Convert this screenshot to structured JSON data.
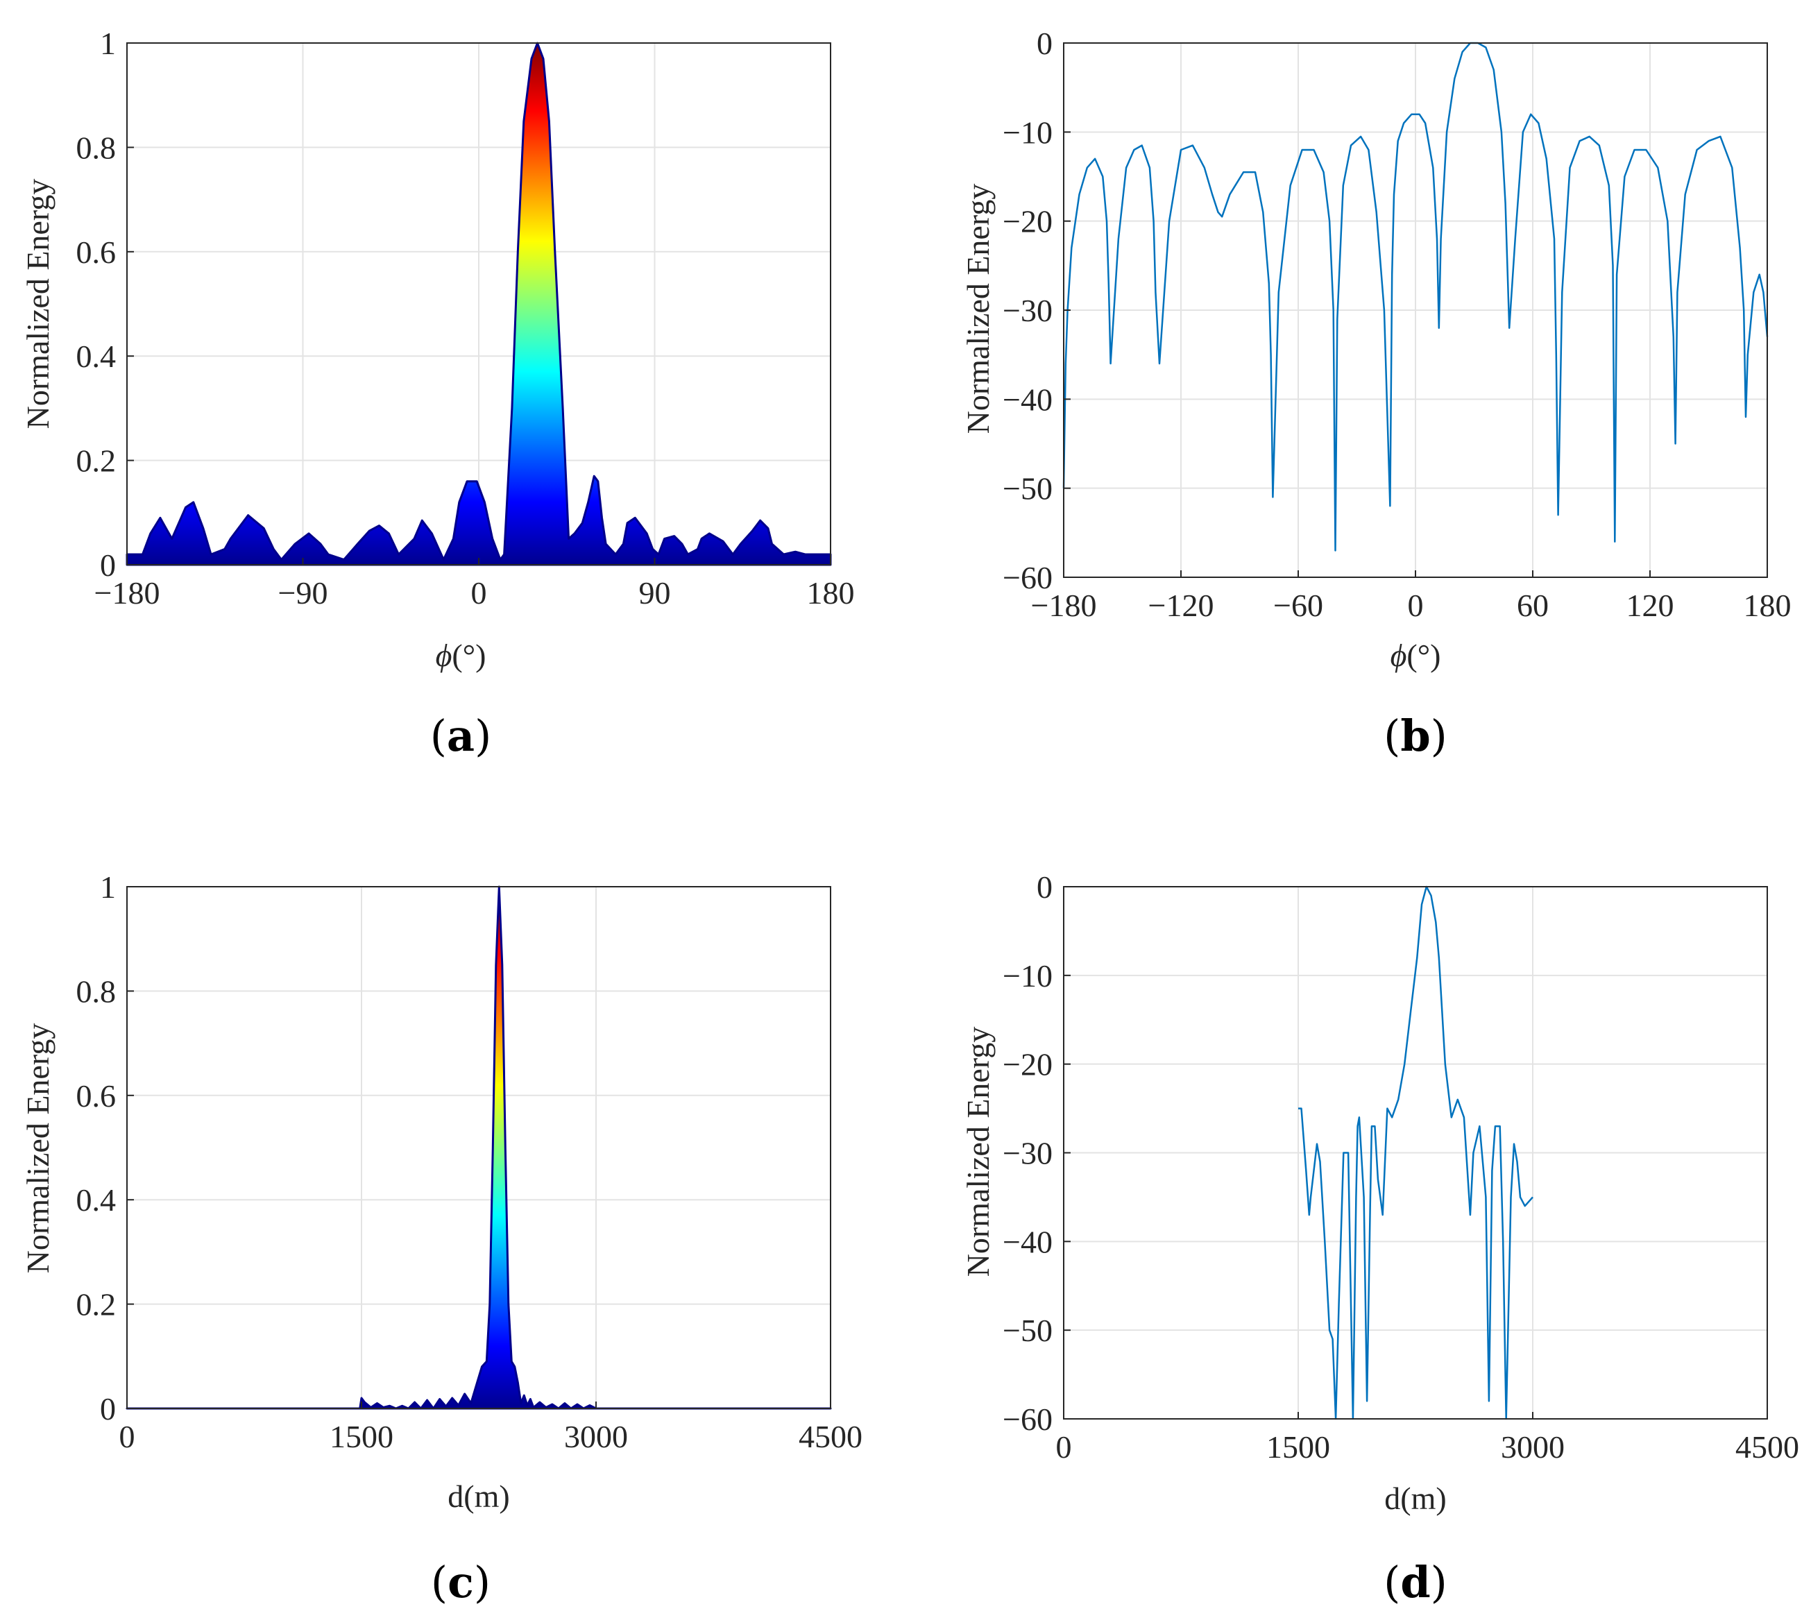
{
  "chart_data": [
    {
      "id": "a",
      "type": "area",
      "caption": "a",
      "xlabel": "ϕ(°)",
      "ylabel": "Normalized Energy",
      "xlim": [
        -180,
        180
      ],
      "ylim": [
        0,
        1
      ],
      "xticks": [
        -180,
        -90,
        0,
        90,
        180
      ],
      "xtick_labels": [
        "−180",
        "−90",
        "0",
        "90",
        "180"
      ],
      "yticks": [
        0,
        0.2,
        0.4,
        0.6,
        0.8,
        1
      ],
      "ytick_labels": [
        "0",
        "0.2",
        "0.4",
        "0.6",
        "0.8",
        "1"
      ],
      "grid": true,
      "colormap": "jet",
      "x": [
        -180,
        -172,
        -168,
        -163,
        -160,
        -157,
        -150,
        -146,
        -141,
        -137,
        -130,
        -127,
        -118,
        -110,
        -105,
        -101,
        -94,
        -87,
        -81,
        -77,
        -69,
        -62,
        -56,
        -51,
        -46,
        -41,
        -33,
        -29,
        -24,
        -18,
        -13,
        -10,
        -6,
        -1,
        3,
        7,
        11,
        13,
        17,
        20,
        23,
        27,
        30,
        33,
        36,
        39,
        43,
        46,
        49,
        53,
        56,
        59,
        61,
        63,
        65,
        70,
        74,
        76,
        80,
        86,
        89,
        92,
        95,
        100,
        104,
        107,
        112,
        114,
        118,
        125,
        130,
        134,
        140,
        144,
        148,
        150,
        156,
        162,
        167,
        172,
        176,
        180
      ],
      "y": [
        0.02,
        0.02,
        0.06,
        0.09,
        0.07,
        0.05,
        0.11,
        0.12,
        0.07,
        0.02,
        0.03,
        0.05,
        0.095,
        0.07,
        0.03,
        0.01,
        0.04,
        0.06,
        0.04,
        0.02,
        0.01,
        0.04,
        0.065,
        0.075,
        0.06,
        0.02,
        0.05,
        0.085,
        0.06,
        0.01,
        0.05,
        0.12,
        0.16,
        0.16,
        0.12,
        0.05,
        0.01,
        0.02,
        0.3,
        0.6,
        0.85,
        0.97,
        1.0,
        0.97,
        0.85,
        0.6,
        0.3,
        0.05,
        0.06,
        0.08,
        0.12,
        0.17,
        0.16,
        0.09,
        0.04,
        0.02,
        0.04,
        0.08,
        0.09,
        0.06,
        0.03,
        0.02,
        0.05,
        0.055,
        0.04,
        0.02,
        0.03,
        0.05,
        0.06,
        0.045,
        0.02,
        0.04,
        0.065,
        0.085,
        0.07,
        0.04,
        0.02,
        0.025,
        0.02,
        0.02,
        0.02,
        0.02
      ]
    },
    {
      "id": "b",
      "type": "line",
      "caption": "b",
      "xlabel": "ϕ(°)",
      "ylabel": "Normalized Energy",
      "xlim": [
        -180,
        180
      ],
      "ylim": [
        -60,
        0
      ],
      "xticks": [
        -180,
        -120,
        -60,
        0,
        60,
        120,
        180
      ],
      "xtick_labels": [
        "−180",
        "−120",
        "−60",
        "0",
        "60",
        "120",
        "180"
      ],
      "yticks": [
        -60,
        -50,
        -40,
        -30,
        -20,
        -10,
        0
      ],
      "ytick_labels": [
        "−60",
        "−50",
        "−40",
        "−30",
        "−20",
        "−10",
        "0"
      ],
      "grid": true,
      "color": "#0072BD",
      "x": [
        -180,
        -179,
        -178,
        -176,
        -172,
        -168,
        -164,
        -160,
        -158,
        -157,
        -156,
        -152,
        -148,
        -144,
        -140,
        -136,
        -134,
        -133,
        -131,
        -126,
        -120,
        -114,
        -108,
        -104,
        -101,
        -99,
        -95,
        -88,
        -82,
        -78,
        -75,
        -74,
        -73,
        -70,
        -64,
        -58,
        -52,
        -47,
        -44,
        -42,
        -41,
        -40,
        -37,
        -33,
        -28,
        -24,
        -20,
        -16,
        -13,
        -12,
        -11,
        -9,
        -6,
        -2,
        2,
        5,
        9,
        11,
        12,
        13,
        16,
        20,
        24,
        28,
        32,
        36,
        40,
        44,
        46,
        47,
        48,
        51,
        55,
        59,
        63,
        67,
        71,
        72,
        73,
        75,
        79,
        84,
        89,
        94,
        99,
        101,
        102,
        103,
        107,
        112,
        118,
        124,
        129,
        132,
        133,
        134,
        138,
        144,
        150,
        156,
        162,
        166,
        168,
        169,
        170,
        173,
        176,
        178,
        180
      ],
      "y": [
        -50,
        -36,
        -30,
        -23,
        -17,
        -14,
        -13,
        -15,
        -20,
        -27,
        -36,
        -22,
        -14,
        -12,
        -11.5,
        -14,
        -20,
        -28,
        -36,
        -20,
        -12,
        -11.5,
        -14,
        -17,
        -19,
        -19.5,
        -17,
        -14.5,
        -14.5,
        -19,
        -27,
        -35,
        -51,
        -28,
        -16,
        -12,
        -12,
        -14.5,
        -20,
        -30,
        -57,
        -31,
        -16,
        -11.5,
        -10.5,
        -12,
        -19,
        -30,
        -52,
        -26,
        -17,
        -11,
        -9,
        -8,
        -8,
        -9,
        -14,
        -22,
        -32,
        -22,
        -10,
        -4,
        -1,
        0,
        0,
        -0.5,
        -3,
        -10,
        -18,
        -25,
        -32,
        -22,
        -10,
        -8,
        -9,
        -13,
        -22,
        -35,
        -53,
        -28,
        -14,
        -11,
        -10.5,
        -11.5,
        -16,
        -25,
        -56,
        -26,
        -15,
        -12,
        -12,
        -14,
        -20,
        -33,
        -45,
        -28,
        -17,
        -12,
        -11,
        -10.5,
        -14,
        -23,
        -30,
        -42,
        -35,
        -28,
        -26,
        -28,
        -33
      ]
    },
    {
      "id": "c",
      "type": "area",
      "caption": "c",
      "xlabel": "d(m)",
      "ylabel": "Normalized Energy",
      "xlim": [
        0,
        4500
      ],
      "ylim": [
        0,
        1
      ],
      "xticks": [
        0,
        1500,
        3000,
        4500
      ],
      "xtick_labels": [
        "0",
        "1500",
        "3000",
        "4500"
      ],
      "yticks": [
        0,
        0.2,
        0.4,
        0.6,
        0.8,
        1
      ],
      "ytick_labels": [
        "0",
        "0.2",
        "0.4",
        "0.6",
        "0.8",
        "1"
      ],
      "grid": true,
      "colormap": "jet",
      "x": [
        0,
        1490,
        1500,
        1520,
        1560,
        1600,
        1640,
        1680,
        1720,
        1760,
        1800,
        1840,
        1880,
        1920,
        1960,
        2000,
        2040,
        2080,
        2120,
        2160,
        2200,
        2240,
        2270,
        2300,
        2320,
        2340,
        2360,
        2380,
        2400,
        2420,
        2440,
        2460,
        2480,
        2500,
        2520,
        2540,
        2560,
        2580,
        2600,
        2640,
        2680,
        2720,
        2760,
        2800,
        2840,
        2880,
        2920,
        2960,
        3000,
        3010,
        4500
      ],
      "y": [
        0,
        0,
        0.02,
        0.012,
        0.002,
        0.01,
        0.002,
        0.005,
        0,
        0.005,
        0,
        0.012,
        0,
        0.016,
        0,
        0.018,
        0.004,
        0.02,
        0.006,
        0.028,
        0.01,
        0.05,
        0.08,
        0.09,
        0.2,
        0.5,
        0.85,
        1.0,
        0.85,
        0.5,
        0.2,
        0.09,
        0.08,
        0.05,
        0.01,
        0.025,
        0.006,
        0.018,
        0.002,
        0.012,
        0.002,
        0.008,
        0,
        0.01,
        0,
        0.008,
        0,
        0.006,
        0,
        0,
        0
      ]
    },
    {
      "id": "d",
      "type": "line",
      "caption": "d",
      "xlabel": "d(m)",
      "ylabel": "Normalized Energy",
      "xlim": [
        0,
        4500
      ],
      "ylim": [
        -60,
        0
      ],
      "xticks": [
        0,
        1500,
        3000,
        4500
      ],
      "xtick_labels": [
        "0",
        "1500",
        "3000",
        "4500"
      ],
      "yticks": [
        -60,
        -50,
        -40,
        -30,
        -20,
        -10,
        0
      ],
      "ytick_labels": [
        "−60",
        "−50",
        "−40",
        "−30",
        "−20",
        "−10",
        "0"
      ],
      "grid": true,
      "color": "#0072BD",
      "x": [
        1500,
        1520,
        1550,
        1570,
        1580,
        1620,
        1640,
        1670,
        1700,
        1720,
        1740,
        1760,
        1790,
        1820,
        1830,
        1850,
        1870,
        1880,
        1890,
        1920,
        1940,
        1960,
        1970,
        1990,
        2010,
        2040,
        2070,
        2100,
        2140,
        2180,
        2220,
        2260,
        2290,
        2320,
        2350,
        2380,
        2400,
        2420,
        2440,
        2480,
        2520,
        2560,
        2600,
        2620,
        2660,
        2700,
        2720,
        2740,
        2760,
        2790,
        2810,
        2830,
        2860,
        2880,
        2900,
        2920,
        2950,
        3000
      ],
      "y": [
        -25,
        -25,
        -32,
        -37,
        -35,
        -29,
        -31,
        -40,
        -50,
        -51,
        -60,
        -47,
        -30,
        -30,
        -40,
        -60,
        -35,
        -27,
        -26,
        -35,
        -58,
        -36,
        -27,
        -27,
        -33,
        -37,
        -25,
        -26,
        -24,
        -20,
        -14,
        -8,
        -2,
        0,
        -1,
        -4,
        -8,
        -14,
        -20,
        -26,
        -24,
        -26,
        -37,
        -30,
        -27,
        -35,
        -58,
        -32,
        -27,
        -27,
        -40,
        -60,
        -35,
        -29,
        -31,
        -35,
        -36,
        -35
      ]
    }
  ]
}
